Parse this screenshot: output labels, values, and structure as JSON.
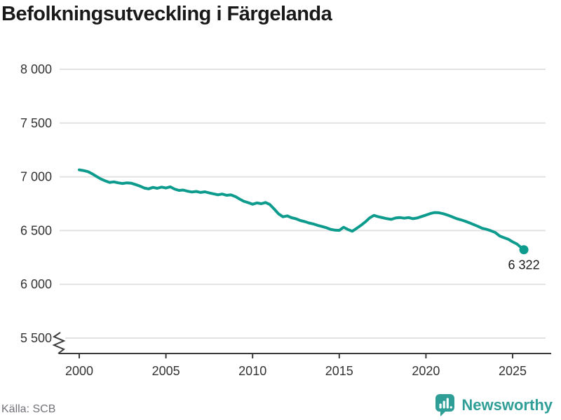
{
  "title": "Befolkningsutveckling i Färgelanda",
  "footer": {
    "source": "Källa: SCB",
    "brand": "Newsworthy"
  },
  "colors": {
    "line": "#0d9b8d",
    "marker": "#0d9b8d",
    "brand_teal": "#2f9e96",
    "grid": "#e2e2e2",
    "axis": "#3a3a3a",
    "axis_text": "#333333",
    "title_text": "#191919",
    "source_text": "#71717a",
    "end_label_text": "#1a1a1a"
  },
  "chart_data": {
    "type": "line",
    "title": "Befolkningsutveckling i Färgelanda",
    "source": "Källa: SCB",
    "grid": "horizontal",
    "legend": "none",
    "y_axis_break": true,
    "end_label": "6 322",
    "xlim": [
      1998.9,
      2026.9
    ],
    "ylim_displayed": [
      5500,
      8000
    ],
    "x_ticks": [
      {
        "value": 2000,
        "label": "2000"
      },
      {
        "value": 2005,
        "label": "2005"
      },
      {
        "value": 2010,
        "label": "2010"
      },
      {
        "value": 2015,
        "label": "2015"
      },
      {
        "value": 2020,
        "label": "2020"
      },
      {
        "value": 2025,
        "label": "2025"
      }
    ],
    "y_ticks": [
      {
        "value": 8000,
        "label": "8 000"
      },
      {
        "value": 7500,
        "label": "7 500"
      },
      {
        "value": 7000,
        "label": "7 000"
      },
      {
        "value": 6500,
        "label": "6 500"
      },
      {
        "value": 6000,
        "label": "6 000"
      },
      {
        "value": 5500,
        "label": "5 500"
      }
    ],
    "series": [
      {
        "name": "Befolkning",
        "points": [
          [
            2000.0,
            7065
          ],
          [
            2000.25,
            7058
          ],
          [
            2000.5,
            7048
          ],
          [
            2000.75,
            7028
          ],
          [
            2001.0,
            7003
          ],
          [
            2001.25,
            6980
          ],
          [
            2001.5,
            6962
          ],
          [
            2001.75,
            6948
          ],
          [
            2002.0,
            6953
          ],
          [
            2002.25,
            6944
          ],
          [
            2002.5,
            6938
          ],
          [
            2002.75,
            6944
          ],
          [
            2003.0,
            6941
          ],
          [
            2003.25,
            6928
          ],
          [
            2003.5,
            6914
          ],
          [
            2003.75,
            6896
          ],
          [
            2004.0,
            6888
          ],
          [
            2004.25,
            6902
          ],
          [
            2004.5,
            6893
          ],
          [
            2004.75,
            6904
          ],
          [
            2005.0,
            6896
          ],
          [
            2005.25,
            6907
          ],
          [
            2005.5,
            6886
          ],
          [
            2005.75,
            6874
          ],
          [
            2006.0,
            6877
          ],
          [
            2006.25,
            6866
          ],
          [
            2006.5,
            6859
          ],
          [
            2006.75,
            6864
          ],
          [
            2007.0,
            6855
          ],
          [
            2007.25,
            6861
          ],
          [
            2007.5,
            6850
          ],
          [
            2007.75,
            6842
          ],
          [
            2008.0,
            6833
          ],
          [
            2008.25,
            6840
          ],
          [
            2008.5,
            6828
          ],
          [
            2008.75,
            6832
          ],
          [
            2009.0,
            6817
          ],
          [
            2009.25,
            6793
          ],
          [
            2009.5,
            6772
          ],
          [
            2009.75,
            6760
          ],
          [
            2010.0,
            6745
          ],
          [
            2010.25,
            6757
          ],
          [
            2010.5,
            6750
          ],
          [
            2010.75,
            6761
          ],
          [
            2011.0,
            6742
          ],
          [
            2011.25,
            6700
          ],
          [
            2011.5,
            6655
          ],
          [
            2011.75,
            6628
          ],
          [
            2012.0,
            6637
          ],
          [
            2012.25,
            6620
          ],
          [
            2012.5,
            6610
          ],
          [
            2012.75,
            6594
          ],
          [
            2013.0,
            6584
          ],
          [
            2013.25,
            6571
          ],
          [
            2013.5,
            6562
          ],
          [
            2013.75,
            6549
          ],
          [
            2014.0,
            6538
          ],
          [
            2014.25,
            6527
          ],
          [
            2014.5,
            6512
          ],
          [
            2014.75,
            6504
          ],
          [
            2015.0,
            6502
          ],
          [
            2015.25,
            6531
          ],
          [
            2015.5,
            6510
          ],
          [
            2015.75,
            6494
          ],
          [
            2016.0,
            6520
          ],
          [
            2016.25,
            6549
          ],
          [
            2016.5,
            6580
          ],
          [
            2016.75,
            6618
          ],
          [
            2017.0,
            6641
          ],
          [
            2017.25,
            6629
          ],
          [
            2017.5,
            6620
          ],
          [
            2017.75,
            6611
          ],
          [
            2018.0,
            6604
          ],
          [
            2018.25,
            6617
          ],
          [
            2018.5,
            6621
          ],
          [
            2018.75,
            6615
          ],
          [
            2019.0,
            6621
          ],
          [
            2019.25,
            6611
          ],
          [
            2019.5,
            6617
          ],
          [
            2019.75,
            6631
          ],
          [
            2020.0,
            6644
          ],
          [
            2020.25,
            6658
          ],
          [
            2020.5,
            6668
          ],
          [
            2020.75,
            6666
          ],
          [
            2021.0,
            6657
          ],
          [
            2021.25,
            6644
          ],
          [
            2021.5,
            6629
          ],
          [
            2021.75,
            6612
          ],
          [
            2022.0,
            6601
          ],
          [
            2022.25,
            6588
          ],
          [
            2022.5,
            6573
          ],
          [
            2022.75,
            6556
          ],
          [
            2023.0,
            6540
          ],
          [
            2023.25,
            6521
          ],
          [
            2023.5,
            6512
          ],
          [
            2023.75,
            6498
          ],
          [
            2024.0,
            6482
          ],
          [
            2024.25,
            6450
          ],
          [
            2024.5,
            6434
          ],
          [
            2024.75,
            6420
          ],
          [
            2025.0,
            6395
          ],
          [
            2025.25,
            6375
          ],
          [
            2025.42,
            6352
          ],
          [
            2025.65,
            6322
          ]
        ]
      }
    ]
  }
}
